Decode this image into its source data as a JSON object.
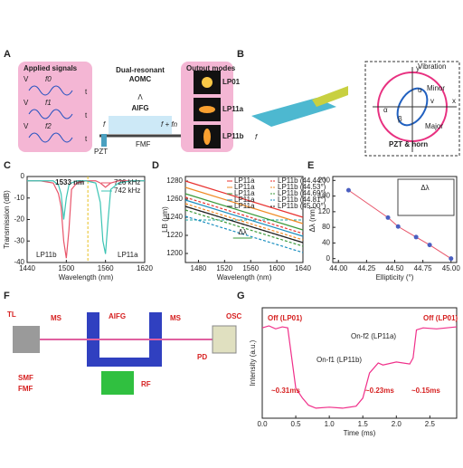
{
  "panel_labels": [
    "A",
    "B",
    "C",
    "D",
    "E",
    "F",
    "G"
  ],
  "panel_a": {
    "applied_signals": "Applied signals",
    "signals": [
      "f0",
      "f1",
      "f2"
    ],
    "axis_v": "V",
    "axis_t": "t",
    "device": "Dual-resonant",
    "device2": "AOMC",
    "period": "Λ",
    "grating": "AIFG",
    "input": "f",
    "output": "f + fn",
    "pzt": "PZT",
    "fiber": "FMF",
    "output_modes": "Output modes",
    "modes": [
      "LP01",
      "LP11a",
      "LP11b"
    ]
  },
  "panel_b": {
    "f": "f",
    "vibration": "Vibration",
    "minor": "Minor",
    "major": "Major",
    "pzt_horn": "PZT & horn",
    "x": "x",
    "y": "y",
    "alpha": "α",
    "beta": "β",
    "u": "u",
    "v": "v"
  },
  "panel_f": {
    "tl": "TL",
    "ms": "MS",
    "aifg": "AIFG",
    "ms2": "MS",
    "osc": "OSC",
    "pd": "PD",
    "smf": "SMF",
    "fmf": "FMF",
    "rf": "RF"
  },
  "chart_data": [
    {
      "type": "line",
      "x_label": "Wavelength (nm)",
      "y_label": "Transmission (dB)",
      "x": [
        1440,
        1460,
        1480,
        1488,
        1492,
        1496,
        1500,
        1504,
        1508,
        1516,
        1530,
        1545,
        1552,
        1556,
        1560,
        1564,
        1568,
        1580,
        1600,
        1620
      ],
      "series": [
        {
          "name": "726 kHz",
          "color": "#e8556a",
          "values": [
            -2,
            -2,
            -3,
            -8,
            -14,
            -30,
            -38,
            -25,
            -6,
            -3,
            -2,
            -2,
            -3,
            -4,
            -5,
            -4,
            -3,
            -2,
            -2,
            -2
          ]
        },
        {
          "name": "742 kHz",
          "color": "#3cc4b4",
          "values": [
            -2,
            -2,
            -2,
            -4,
            -8,
            -20,
            -10,
            -4,
            -3,
            -2,
            -2,
            -3,
            -12,
            -30,
            -36,
            -20,
            -6,
            -3,
            -2,
            -2
          ]
        }
      ],
      "xlim": [
        1440,
        1620
      ],
      "xticks": [
        1440,
        1500,
        1560,
        1620
      ],
      "ylim": [
        -40,
        0
      ],
      "yticks": [
        -40,
        -30,
        -20,
        -10,
        0
      ],
      "marker_x": 1533,
      "annotations": [
        "1533 nm",
        "LP11b",
        "LP11a"
      ]
    },
    {
      "type": "line",
      "x_label": "Wavelength (nm)",
      "y_label": "LB (μm)",
      "x": [
        1460,
        1640
      ],
      "series": [
        {
          "name": "LP11a",
          "color": "#e8312f",
          "dash": false,
          "values": [
            1280,
            1240
          ]
        },
        {
          "name": "LP11a",
          "color": "#f08a24",
          "dash": false,
          "values": [
            1273,
            1233
          ]
        },
        {
          "name": "LP11a",
          "color": "#3a9a3a",
          "dash": false,
          "values": [
            1266,
            1226
          ]
        },
        {
          "name": "LP11a",
          "color": "#1a8fc0",
          "dash": false,
          "values": [
            1259,
            1219
          ]
        },
        {
          "name": "LP11a",
          "color": "#222222",
          "dash": false,
          "values": [
            1252,
            1212
          ]
        },
        {
          "name": "LP11b (44.44°)",
          "color": "#e8312f",
          "dash": true,
          "values": [
            1262,
            1222
          ]
        },
        {
          "name": "LP11b (44.53°)",
          "color": "#f08a24",
          "dash": true,
          "values": [
            1255,
            1215
          ]
        },
        {
          "name": "LP11b (44.69°)",
          "color": "#3a9a3a",
          "dash": true,
          "values": [
            1248,
            1208
          ]
        },
        {
          "name": "LP11b (44.81°)",
          "color": "#1a8fc0",
          "dash": true,
          "values": [
            1241,
            1201
          ]
        },
        {
          "name": "LP11b (45.00°)",
          "color": "#222222",
          "dash": true,
          "values": [
            1252,
            1212
          ]
        }
      ],
      "xlim": [
        1460,
        1640
      ],
      "xticks": [
        1480,
        1520,
        1560,
        1600,
        1640
      ],
      "ylim": [
        1190,
        1285
      ],
      "yticks": [
        1200,
        1220,
        1240,
        1260,
        1280
      ],
      "hline": 1237,
      "delta_range": [
        1533,
        1562
      ],
      "annotation": "Δλ"
    },
    {
      "type": "scatter",
      "x_label": "Ellipticity (°)",
      "y_label": "Δλ (nm)",
      "x": [
        44.09,
        44.44,
        44.53,
        44.69,
        44.81,
        45.0
      ],
      "values": [
        175,
        105,
        82,
        55,
        35,
        0
      ],
      "color": "#4b5fc0",
      "line_color": "#e8556a",
      "xlim": [
        43.95,
        45.05
      ],
      "xticks": [
        {
          "value": 44,
          "label": "44.00"
        },
        {
          "value": 44.25,
          "label": "44.25"
        },
        {
          "value": 44.5,
          "label": "44.50"
        },
        {
          "value": 44.75,
          "label": "44.75"
        },
        {
          "value": 45,
          "label": "45.00"
        }
      ],
      "ylim": [
        -10,
        210
      ],
      "yticks": [
        0,
        40,
        80,
        120,
        160,
        200
      ],
      "inset_label": "Δλ"
    },
    {
      "type": "line",
      "x_label": "Time (ms)",
      "y_label": "Intensity (a.u.)",
      "x": [
        0,
        0.1,
        0.2,
        0.3,
        0.38,
        0.42,
        0.5,
        0.6,
        0.69,
        0.8,
        1.0,
        1.2,
        1.4,
        1.5,
        1.6,
        1.73,
        1.8,
        2.0,
        2.2,
        2.25,
        2.3,
        2.4,
        2.6,
        2.9
      ],
      "values": [
        0.9,
        0.92,
        0.89,
        0.91,
        0.9,
        0.7,
        0.3,
        0.2,
        0.13,
        0.1,
        0.11,
        0.1,
        0.12,
        0.2,
        0.45,
        0.55,
        0.53,
        0.56,
        0.54,
        0.6,
        0.88,
        0.9,
        0.89,
        0.91
      ],
      "color": "#f0308a",
      "xlim": [
        0,
        2.9
      ],
      "xticks": [
        {
          "value": 0,
          "label": "0.0"
        },
        {
          "value": 0.5,
          "label": "0.5"
        },
        {
          "value": 1,
          "label": "1.0"
        },
        {
          "value": 1.5,
          "label": "1.5"
        },
        {
          "value": 2,
          "label": "2.0"
        },
        {
          "value": 2.5,
          "label": "2.5"
        }
      ],
      "ylim": [
        0,
        1.1
      ],
      "annotations": [
        "Off (LP01)",
        "On-f1 (LP11b)",
        "On-f2 (LP11a)",
        "Off (LP01)",
        "~0.31ms",
        "~0.23ms",
        "~0.15ms"
      ]
    }
  ]
}
